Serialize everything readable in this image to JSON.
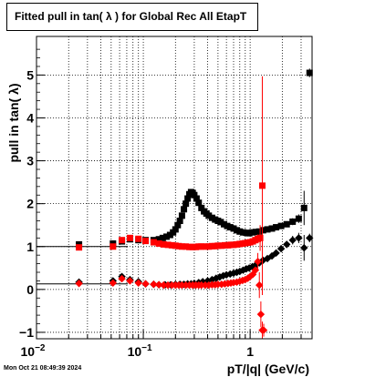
{
  "title": "Fitted pull in tan( λ ) for Global Rec All EtapT",
  "timestamp": "Mon Oct 21 08:49:39 2024",
  "chart_data": {
    "type": "scatter",
    "title": "Fitted pull in tan( λ ) for Global Rec All EtapT",
    "xlabel": "pT/|q| (GeV/c)",
    "ylabel": "pull in tan( λ)",
    "xscale": "log",
    "xlim": [
      0.01,
      3.8
    ],
    "ylim": [
      -1.15,
      5.9
    ],
    "grid": true,
    "x_ticks": [
      {
        "v": 0.01,
        "label": "10",
        "exp": "−2"
      },
      {
        "v": 0.1,
        "label": "10",
        "exp": "−1"
      },
      {
        "v": 1,
        "label": "1",
        "exp": ""
      }
    ],
    "y_ticks": [
      -1,
      0,
      1,
      2,
      3,
      4,
      5
    ],
    "reference_lines": [
      {
        "y": 1.0,
        "x_from": 0.0095,
        "x_to": 0.022,
        "color": "#000000"
      },
      {
        "y": 0.13,
        "x_from": 0.0095,
        "x_to": 0.022,
        "color": "#000000"
      }
    ],
    "series": [
      {
        "marker": "square",
        "color": "#000000",
        "x": [
          0.025,
          0.052,
          0.063,
          0.075,
          0.09,
          0.105,
          0.125,
          0.14,
          0.152,
          0.165,
          0.178,
          0.19,
          0.2,
          0.21,
          0.22,
          0.23,
          0.24,
          0.25,
          0.26,
          0.27,
          0.28,
          0.29,
          0.3,
          0.315,
          0.33,
          0.35,
          0.37,
          0.39,
          0.41,
          0.44,
          0.47,
          0.5,
          0.53,
          0.57,
          0.61,
          0.65,
          0.7,
          0.75,
          0.8,
          0.86,
          0.92,
          0.98,
          1.05,
          1.13,
          1.22,
          1.32,
          1.45,
          1.6,
          1.75,
          1.95,
          2.2,
          2.5,
          2.85,
          3.2,
          3.6
        ],
        "y": [
          1.05,
          1.07,
          1.12,
          1.17,
          1.15,
          1.15,
          1.15,
          1.17,
          1.2,
          1.23,
          1.27,
          1.33,
          1.4,
          1.5,
          1.6,
          1.72,
          1.87,
          2.0,
          2.12,
          2.22,
          2.27,
          2.25,
          2.2,
          2.12,
          2.02,
          1.9,
          1.82,
          1.77,
          1.72,
          1.67,
          1.63,
          1.6,
          1.57,
          1.52,
          1.48,
          1.45,
          1.42,
          1.38,
          1.35,
          1.33,
          1.32,
          1.31,
          1.33,
          1.34,
          1.35,
          1.38,
          1.4,
          1.42,
          1.45,
          1.48,
          1.52,
          1.58,
          1.65,
          1.9,
          5.05
        ],
        "yerr": [
          0.05,
          0.04,
          0.03,
          0.03,
          0.03,
          0.03,
          0.03,
          0.03,
          0.03,
          0.03,
          0.03,
          0.03,
          0.03,
          0.03,
          0.03,
          0.03,
          0.03,
          0.03,
          0.03,
          0.03,
          0.03,
          0.03,
          0.03,
          0.03,
          0.03,
          0.03,
          0.03,
          0.03,
          0.03,
          0.03,
          0.03,
          0.03,
          0.03,
          0.03,
          0.03,
          0.03,
          0.03,
          0.03,
          0.03,
          0.03,
          0.03,
          0.03,
          0.03,
          0.03,
          0.03,
          0.03,
          0.04,
          0.04,
          0.05,
          0.06,
          0.07,
          0.08,
          0.1,
          0.4,
          0.1
        ]
      },
      {
        "marker": "diamond",
        "color": "#000000",
        "x": [
          0.025,
          0.052,
          0.063,
          0.075,
          0.09,
          0.105,
          0.125,
          0.14,
          0.16,
          0.18,
          0.2,
          0.22,
          0.24,
          0.26,
          0.28,
          0.3,
          0.33,
          0.36,
          0.4,
          0.44,
          0.48,
          0.52,
          0.56,
          0.6,
          0.65,
          0.7,
          0.75,
          0.8,
          0.86,
          0.92,
          0.98,
          1.05,
          1.13,
          1.22,
          1.32,
          1.45,
          1.6,
          1.75,
          1.95,
          2.2,
          2.5,
          2.85,
          3.2,
          3.6
        ],
        "y": [
          0.17,
          0.2,
          0.3,
          0.23,
          0.18,
          0.13,
          0.12,
          0.11,
          0.11,
          0.11,
          0.12,
          0.12,
          0.12,
          0.13,
          0.13,
          0.14,
          0.16,
          0.18,
          0.2,
          0.23,
          0.26,
          0.29,
          0.32,
          0.34,
          0.36,
          0.38,
          0.4,
          0.42,
          0.45,
          0.48,
          0.5,
          0.53,
          0.57,
          0.62,
          0.68,
          0.72,
          0.78,
          0.85,
          0.95,
          1.05,
          1.15,
          1.2,
          0.97,
          1.2
        ],
        "yerr": [
          0.04,
          0.03,
          0.03,
          0.03,
          0.03,
          0.03,
          0.03,
          0.03,
          0.03,
          0.03,
          0.03,
          0.03,
          0.03,
          0.03,
          0.03,
          0.03,
          0.03,
          0.03,
          0.03,
          0.03,
          0.03,
          0.03,
          0.03,
          0.03,
          0.03,
          0.03,
          0.03,
          0.03,
          0.03,
          0.03,
          0.03,
          0.03,
          0.03,
          0.04,
          0.04,
          0.05,
          0.05,
          0.06,
          0.07,
          0.08,
          0.1,
          0.12,
          0.3,
          0.1
        ]
      },
      {
        "marker": "square",
        "color": "#ff0000",
        "x": [
          0.025,
          0.052,
          0.063,
          0.075,
          0.09,
          0.105,
          0.125,
          0.14,
          0.155,
          0.17,
          0.185,
          0.2,
          0.215,
          0.23,
          0.25,
          0.27,
          0.29,
          0.31,
          0.33,
          0.35,
          0.38,
          0.41,
          0.44,
          0.47,
          0.5,
          0.54,
          0.58,
          0.62,
          0.66,
          0.7,
          0.75,
          0.8,
          0.85,
          0.9,
          0.95,
          1.0,
          1.06,
          1.12,
          1.18,
          1.24,
          1.3
        ],
        "y": [
          0.98,
          1.0,
          1.15,
          1.2,
          1.18,
          1.13,
          1.1,
          1.07,
          1.05,
          1.04,
          1.03,
          1.02,
          1.01,
          1.0,
          1.0,
          0.99,
          0.99,
          0.99,
          1.0,
          1.0,
          1.0,
          1.0,
          1.01,
          1.01,
          1.02,
          1.02,
          1.03,
          1.03,
          1.04,
          1.04,
          1.05,
          1.06,
          1.07,
          1.08,
          1.09,
          1.1,
          1.12,
          1.15,
          1.18,
          1.2,
          2.42
        ],
        "yerr": [
          0.04,
          0.03,
          0.03,
          0.03,
          0.03,
          0.03,
          0.03,
          0.03,
          0.03,
          0.03,
          0.03,
          0.03,
          0.03,
          0.03,
          0.03,
          0.03,
          0.03,
          0.03,
          0.03,
          0.03,
          0.03,
          0.03,
          0.03,
          0.03,
          0.03,
          0.03,
          0.03,
          0.03,
          0.03,
          0.03,
          0.03,
          0.03,
          0.03,
          0.03,
          0.04,
          0.04,
          0.05,
          0.06,
          0.1,
          0.3,
          2.55
        ]
      },
      {
        "marker": "diamond",
        "color": "#ff0000",
        "x": [
          0.025,
          0.052,
          0.063,
          0.075,
          0.09,
          0.105,
          0.125,
          0.14,
          0.155,
          0.17,
          0.185,
          0.2,
          0.215,
          0.23,
          0.25,
          0.27,
          0.29,
          0.31,
          0.33,
          0.35,
          0.38,
          0.41,
          0.44,
          0.47,
          0.5,
          0.54,
          0.58,
          0.62,
          0.66,
          0.7,
          0.75,
          0.8,
          0.85,
          0.9,
          0.95,
          1.0,
          1.06,
          1.12,
          1.18,
          1.22,
          1.26,
          1.3,
          1.34
        ],
        "y": [
          0.14,
          0.15,
          0.25,
          0.2,
          0.15,
          0.13,
          0.12,
          0.11,
          0.1,
          0.1,
          0.1,
          0.1,
          0.1,
          0.1,
          0.1,
          0.1,
          0.1,
          0.1,
          0.1,
          0.1,
          0.1,
          0.1,
          0.11,
          0.11,
          0.12,
          0.12,
          0.13,
          0.14,
          0.15,
          0.16,
          0.17,
          0.19,
          0.21,
          0.23,
          0.26,
          0.3,
          0.35,
          0.45,
          0.65,
          0.1,
          -0.58,
          -0.95,
          -0.95
        ],
        "yerr": [
          0.04,
          0.03,
          0.03,
          0.03,
          0.03,
          0.03,
          0.03,
          0.03,
          0.03,
          0.03,
          0.03,
          0.03,
          0.03,
          0.03,
          0.03,
          0.03,
          0.03,
          0.03,
          0.03,
          0.03,
          0.03,
          0.03,
          0.03,
          0.03,
          0.03,
          0.03,
          0.03,
          0.03,
          0.03,
          0.03,
          0.03,
          0.03,
          0.03,
          0.03,
          0.04,
          0.04,
          0.05,
          0.06,
          0.2,
          0.3,
          0.3,
          0.2,
          0.15
        ]
      }
    ]
  }
}
